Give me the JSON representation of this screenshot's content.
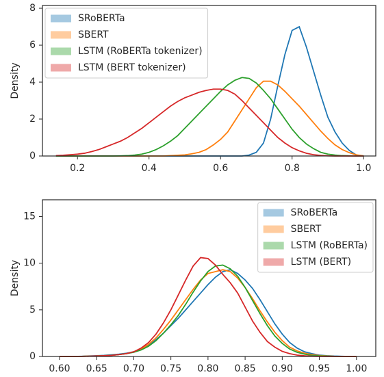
{
  "chart_data": [
    {
      "type": "line",
      "ylabel": "Density",
      "legend": "upper left",
      "x": [
        0.14,
        0.16,
        0.18,
        0.2,
        0.22,
        0.24,
        0.26,
        0.28,
        0.3,
        0.32,
        0.34,
        0.36,
        0.38,
        0.4,
        0.42,
        0.44,
        0.46,
        0.48,
        0.5,
        0.52,
        0.54,
        0.56,
        0.58,
        0.6,
        0.62,
        0.64,
        0.66,
        0.68,
        0.7,
        0.72,
        0.74,
        0.76,
        0.78,
        0.8,
        0.82,
        0.84,
        0.86,
        0.88,
        0.9,
        0.92,
        0.94,
        0.96,
        0.98,
        1.0
      ],
      "series": [
        {
          "name": "SRoBERTa",
          "color": "#1f77b4",
          "values": [
            0,
            0,
            0,
            0,
            0,
            0,
            0,
            0,
            0,
            0,
            0,
            0,
            0,
            0,
            0,
            0,
            0,
            0,
            0,
            0,
            0,
            0,
            0,
            0,
            0,
            0,
            0,
            0.05,
            0.2,
            0.7,
            2.0,
            3.8,
            5.5,
            6.8,
            7.0,
            5.9,
            4.6,
            3.3,
            2.1,
            1.3,
            0.7,
            0.3,
            0.05,
            0
          ]
        },
        {
          "name": "SBERT",
          "color": "#ff7f0e",
          "values": [
            0,
            0,
            0,
            0,
            0,
            0,
            0,
            0,
            0,
            0,
            0,
            0,
            0,
            0,
            0,
            0,
            0.02,
            0.04,
            0.06,
            0.12,
            0.2,
            0.35,
            0.6,
            0.9,
            1.3,
            1.9,
            2.5,
            3.1,
            3.7,
            4.05,
            4.05,
            3.85,
            3.5,
            3.1,
            2.7,
            2.25,
            1.8,
            1.35,
            0.95,
            0.6,
            0.35,
            0.18,
            0.06,
            0.01
          ]
        },
        {
          "name": "LSTM (RoBERTa tokenizer)",
          "color": "#2ca02c",
          "values": [
            0,
            0,
            0,
            0,
            0,
            0,
            0,
            0,
            0,
            0.01,
            0.02,
            0.05,
            0.1,
            0.2,
            0.35,
            0.55,
            0.8,
            1.1,
            1.5,
            1.9,
            2.3,
            2.7,
            3.1,
            3.5,
            3.85,
            4.1,
            4.25,
            4.2,
            3.95,
            3.55,
            3.1,
            2.55,
            2.0,
            1.45,
            1.0,
            0.65,
            0.4,
            0.2,
            0.1,
            0.05,
            0.02,
            0.01,
            0,
            0
          ]
        },
        {
          "name": "LSTM (BERT tokenizer)",
          "color": "#d62728",
          "values": [
            0.02,
            0.04,
            0.07,
            0.1,
            0.15,
            0.24,
            0.35,
            0.5,
            0.65,
            0.8,
            1.0,
            1.25,
            1.5,
            1.8,
            2.1,
            2.4,
            2.7,
            2.95,
            3.15,
            3.3,
            3.45,
            3.55,
            3.62,
            3.62,
            3.55,
            3.35,
            3.0,
            2.6,
            2.2,
            1.8,
            1.4,
            1.0,
            0.7,
            0.45,
            0.28,
            0.15,
            0.07,
            0.03,
            0.01,
            0,
            0,
            0,
            0,
            0
          ]
        }
      ],
      "xlim": [
        0.102,
        1.034
      ],
      "ylim": [
        0,
        8.15
      ],
      "xticks": [
        0.2,
        0.4,
        0.6,
        0.8,
        {
          "value": 1.0,
          "label": "1.0"
        }
      ],
      "yticks": [
        0,
        2,
        4,
        6,
        8
      ]
    },
    {
      "type": "line",
      "ylabel": "Density",
      "legend": "upper right",
      "x": [
        0.6,
        0.61,
        0.62,
        0.63,
        0.64,
        0.65,
        0.66,
        0.67,
        0.68,
        0.69,
        0.7,
        0.71,
        0.72,
        0.73,
        0.74,
        0.75,
        0.76,
        0.77,
        0.78,
        0.79,
        0.8,
        0.81,
        0.82,
        0.83,
        0.84,
        0.85,
        0.86,
        0.87,
        0.88,
        0.89,
        0.9,
        0.91,
        0.92,
        0.93,
        0.94,
        0.95,
        0.96,
        0.97,
        0.98,
        0.99,
        1.0
      ],
      "series": [
        {
          "name": "SRoBERTa",
          "color": "#1f77b4",
          "values": [
            0,
            0,
            0,
            0.02,
            0.05,
            0.08,
            0.12,
            0.18,
            0.25,
            0.35,
            0.5,
            0.8,
            1.2,
            1.8,
            2.5,
            3.3,
            4.1,
            5.0,
            5.9,
            6.8,
            7.7,
            8.5,
            9.1,
            9.3,
            8.9,
            8.2,
            7.3,
            6.1,
            4.8,
            3.5,
            2.4,
            1.5,
            0.9,
            0.5,
            0.3,
            0.15,
            0.08,
            0.04,
            0.02,
            0,
            0
          ]
        },
        {
          "name": "SBERT",
          "color": "#ff7f0e",
          "values": [
            0,
            0,
            0,
            0.01,
            0.03,
            0.05,
            0.08,
            0.12,
            0.2,
            0.3,
            0.5,
            0.8,
            1.3,
            2.0,
            2.9,
            3.9,
            5.0,
            6.1,
            7.2,
            8.2,
            8.9,
            9.1,
            9.3,
            9.1,
            8.4,
            7.4,
            6.2,
            4.9,
            3.7,
            2.6,
            1.7,
            1.0,
            0.6,
            0.35,
            0.2,
            0.1,
            0.05,
            0.02,
            0.01,
            0,
            0
          ]
        },
        {
          "name": "LSTM (RoBERTa)",
          "color": "#2ca02c",
          "values": [
            0,
            0,
            0,
            0.01,
            0.03,
            0.05,
            0.08,
            0.13,
            0.2,
            0.3,
            0.45,
            0.7,
            1.1,
            1.7,
            2.5,
            3.4,
            4.4,
            5.6,
            6.9,
            8.1,
            9.1,
            9.7,
            9.8,
            9.4,
            8.6,
            7.4,
            6.0,
            4.6,
            3.3,
            2.2,
            1.4,
            0.8,
            0.45,
            0.25,
            0.12,
            0.06,
            0.03,
            0.01,
            0,
            0,
            0
          ]
        },
        {
          "name": "LSTM (BERT)",
          "color": "#d62728",
          "values": [
            0,
            0,
            0,
            0.01,
            0.03,
            0.05,
            0.08,
            0.12,
            0.2,
            0.3,
            0.5,
            0.9,
            1.5,
            2.4,
            3.6,
            5.0,
            6.6,
            8.2,
            9.7,
            10.6,
            10.5,
            9.8,
            8.8,
            7.9,
            6.8,
            5.3,
            3.8,
            2.6,
            1.6,
            1.0,
            0.55,
            0.3,
            0.15,
            0.07,
            0.03,
            0.01,
            0,
            0,
            0,
            0,
            0
          ]
        }
      ],
      "xlim": [
        0.577,
        1.026
      ],
      "ylim": [
        0,
        16.8
      ],
      "xticks": [
        {
          "value": 0.6,
          "label": "0.60"
        },
        {
          "value": 0.65,
          "label": "0.65"
        },
        {
          "value": 0.7,
          "label": "0.70"
        },
        {
          "value": 0.75,
          "label": "0.75"
        },
        {
          "value": 0.8,
          "label": "0.80"
        },
        {
          "value": 0.85,
          "label": "0.85"
        },
        {
          "value": 0.9,
          "label": "0.90"
        },
        {
          "value": 0.95,
          "label": "0.95"
        },
        {
          "value": 1.0,
          "label": "1.00"
        }
      ],
      "yticks": [
        0,
        5,
        10,
        15
      ]
    }
  ]
}
